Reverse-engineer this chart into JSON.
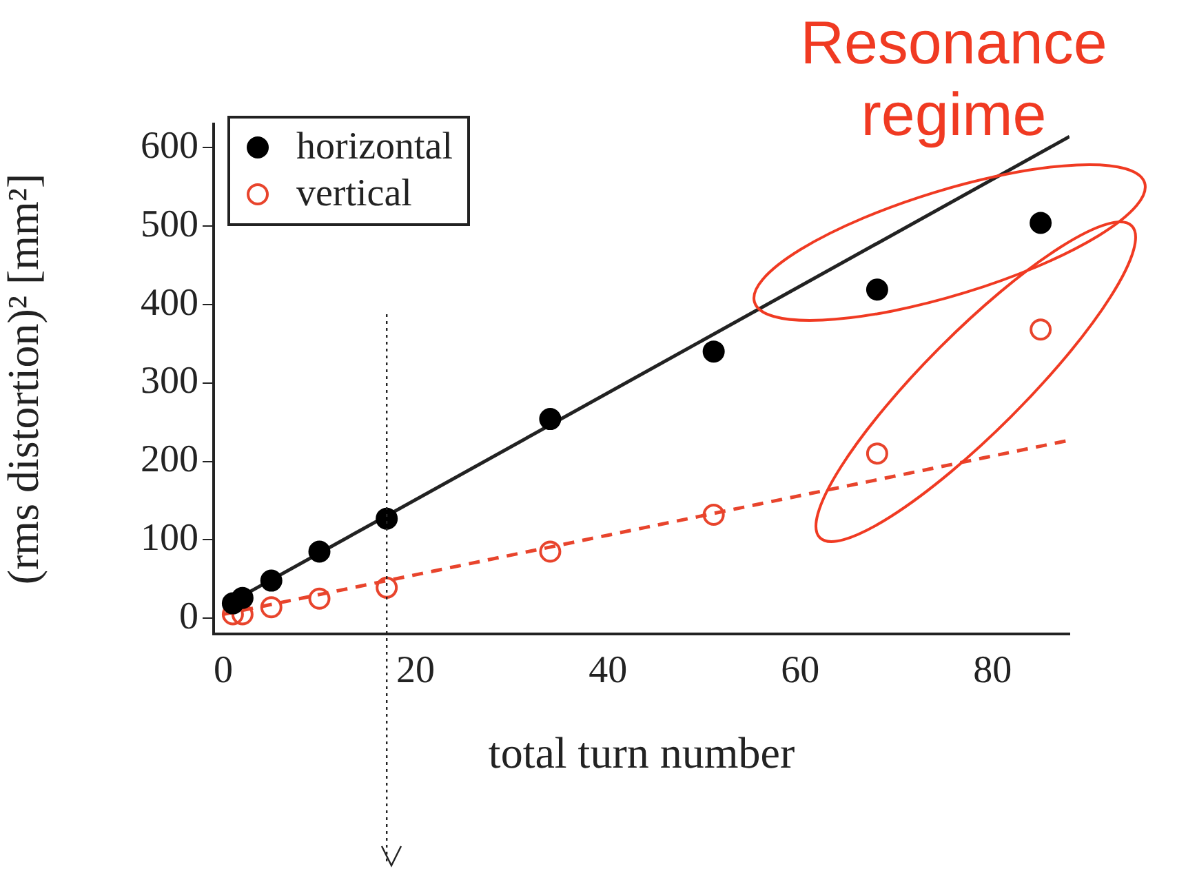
{
  "chart_data": {
    "type": "scatter",
    "xlabel": "total turn number",
    "ylabel": "(rms distortion)² [mm²]",
    "annotations": [
      "Resonance regime"
    ],
    "xlim": [
      -1,
      88
    ],
    "ylim": [
      -20,
      630
    ],
    "xticks": [
      0,
      20,
      40,
      60,
      80
    ],
    "yticks": [
      0,
      100,
      200,
      300,
      400,
      500,
      600
    ],
    "grid": false,
    "ref_lines": [
      {
        "axis": "x",
        "value": 17,
        "line_style": "dotted",
        "color": "#222222"
      }
    ],
    "legend": "top left",
    "marker": "circle",
    "series": [
      {
        "name": "horizontal",
        "color": "#000000",
        "x": [
          1,
          2,
          5,
          10,
          17,
          34,
          51,
          68,
          85
        ],
        "values": [
          19,
          26,
          48,
          85,
          127,
          254,
          340,
          419,
          504
        ]
      },
      {
        "name": "vertical",
        "color": "#e8442c",
        "x": [
          1,
          2,
          5,
          10,
          17,
          34,
          51,
          68,
          85
        ],
        "values": [
          5,
          5,
          14,
          25,
          39,
          85,
          132,
          210,
          368
        ]
      },
      {
        "type": "line",
        "color": "#222222",
        "x": [
          0,
          88
        ],
        "values": [
          15,
          614
        ],
        "line_style": "solid",
        "marker": "none"
      },
      {
        "type": "line",
        "color": "#e8442c",
        "x": [
          0,
          88
        ],
        "values": [
          5,
          227
        ],
        "line_style": "dashed",
        "marker": "none"
      }
    ]
  }
}
